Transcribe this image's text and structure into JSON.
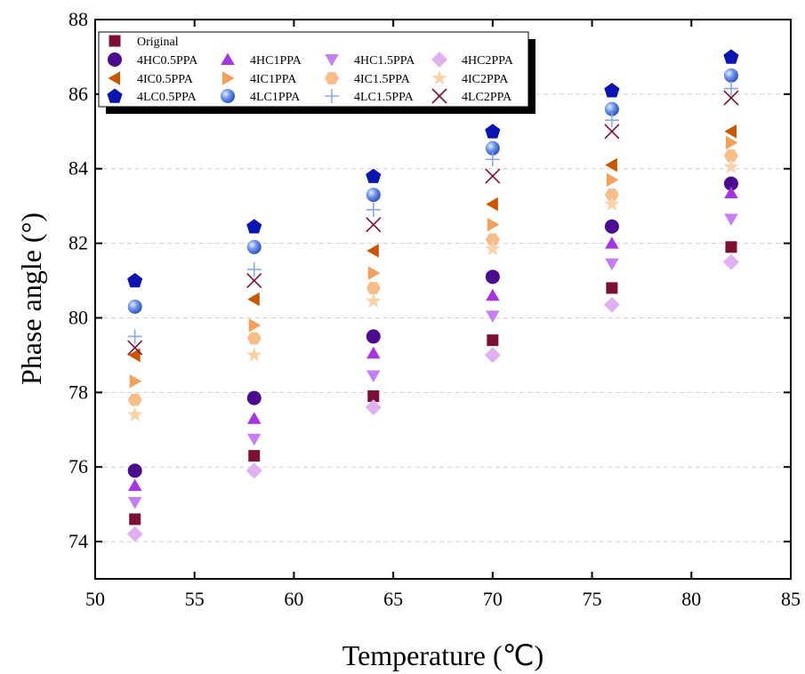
{
  "chart_data": {
    "type": "scatter",
    "title": "",
    "xlabel": "Temperature (℃)",
    "ylabel": "Phase angle (°)",
    "xlim": [
      50,
      85
    ],
    "ylim": [
      73,
      88
    ],
    "x_ticks": [
      50,
      55,
      60,
      65,
      70,
      75,
      80,
      85
    ],
    "y_ticks": [
      74,
      76,
      78,
      80,
      82,
      84,
      86,
      88
    ],
    "grid": "horizontal dashed",
    "legend_placement": "top-left",
    "x": [
      52,
      58,
      64,
      70,
      76,
      82
    ],
    "series": [
      {
        "name": "Original",
        "marker": "square",
        "color": "#7b1034",
        "values": [
          74.6,
          76.3,
          77.9,
          79.4,
          80.8,
          81.9
        ]
      },
      {
        "name": "4HC0.5PPA",
        "marker": "circle",
        "color": "#4c0b8e",
        "values": [
          75.9,
          77.85,
          79.5,
          81.1,
          82.45,
          83.6
        ]
      },
      {
        "name": "4HC1PPA",
        "marker": "triangle-up",
        "color": "#a434e6",
        "values": [
          75.5,
          77.3,
          79.05,
          80.6,
          82.0,
          83.35
        ]
      },
      {
        "name": "4HC1.5PPA",
        "marker": "triangle-down",
        "color": "#c67ef4",
        "values": [
          75.05,
          76.75,
          78.45,
          80.05,
          81.45,
          82.65
        ]
      },
      {
        "name": "4HC2PPA",
        "marker": "diamond",
        "color": "#e0b0f0",
        "values": [
          74.2,
          75.9,
          77.6,
          79.0,
          80.35,
          81.5
        ]
      },
      {
        "name": "4IC0.5PPA",
        "marker": "triangle-left",
        "color": "#cc5500",
        "values": [
          79.0,
          80.5,
          81.8,
          83.05,
          84.1,
          85.0
        ]
      },
      {
        "name": "4IC1PPA",
        "marker": "triangle-right",
        "color": "#f5a05a",
        "values": [
          78.3,
          79.8,
          81.2,
          82.5,
          83.7,
          84.7
        ]
      },
      {
        "name": "4IC1.5PPA",
        "marker": "hexagon",
        "color": "#f9bd8a",
        "values": [
          77.8,
          79.45,
          80.8,
          82.1,
          83.3,
          84.35
        ]
      },
      {
        "name": "4IC2PPA",
        "marker": "star",
        "color": "#f9d2a8",
        "values": [
          77.4,
          79.0,
          80.45,
          81.85,
          83.05,
          84.05
        ]
      },
      {
        "name": "4LC0.5PPA",
        "marker": "pentagon",
        "color": "#0a14b0",
        "values": [
          81.0,
          82.45,
          83.8,
          85.0,
          86.1,
          87.0
        ]
      },
      {
        "name": "4LC1PPA",
        "marker": "sphere",
        "color": "#4a7ae0",
        "values": [
          80.3,
          81.9,
          83.3,
          84.55,
          85.6,
          86.5
        ]
      },
      {
        "name": "4LC1.5PPA",
        "marker": "plus",
        "color": "#8aa8e8",
        "values": [
          79.5,
          81.3,
          82.9,
          84.25,
          85.3,
          86.15
        ]
      },
      {
        "name": "4LC2PPA",
        "marker": "x",
        "color": "#7b1034",
        "values": [
          79.2,
          81.0,
          82.5,
          83.8,
          85.0,
          85.9
        ]
      }
    ]
  }
}
